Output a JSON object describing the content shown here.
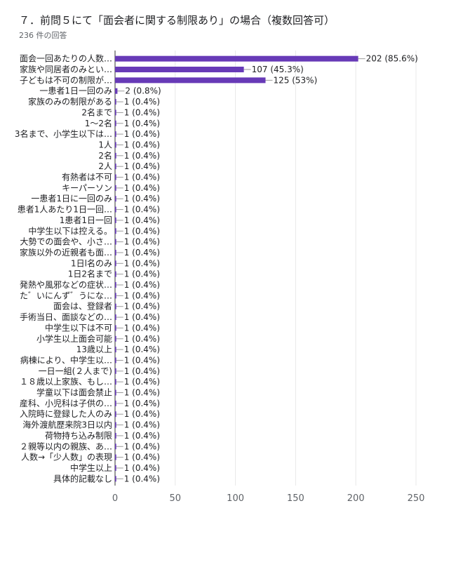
{
  "header": {
    "title": "７．前問５にて「面会者に関する制限あり」の場合（複数回答可）",
    "response_count": "236 件の回答"
  },
  "colors": {
    "bar": "#673ab7",
    "grid": "#e8e8e8",
    "axis": "#333333"
  },
  "chart_data": {
    "type": "bar",
    "orientation": "horizontal",
    "title": "７．前問５にて「面会者に関する制限あり」の場合（複数回答可）",
    "subtitle": "236 件の回答",
    "categories": [
      "面会一回あたりの人数…",
      "家族や同居者のみとい…",
      "子どもは不可の制限が…",
      "一患者1日一回のみ",
      "家族のみの制限がある",
      "2名まで",
      "1～2名",
      "3名まで、小学生以下は…",
      "1人",
      "2名",
      "2人",
      "有熱者は不可",
      "キーパーソン",
      "一患者1日に一回のみ",
      "患者1人あたり1日一回…",
      "1患者1日一回",
      "中学生以下は控える。",
      "大勢での面会や、小さ…",
      "家族以外の近親者も面…",
      "1日l名のみ",
      "1日2名まで",
      "発熱や風邪などの症状…",
      "た゛いにんず゛うにな…",
      "面会は、登録者",
      "手術当日、面談などの…",
      "中学生以下は不可",
      "小学生以上面会可能",
      "13歳以上",
      "病棟により、中学生以…",
      "一日一組(２人まで)",
      "１８歳以上家族、もし…",
      "学童以下は面会禁止",
      "産科、小児科は子供の…",
      "入院時に登録した人のみ",
      "海外渡航歴来院3日以内",
      "荷物持ち込み制限",
      "２親等以内の親族、あ…",
      "人数→「少人数」の表現",
      "中学生以上",
      "具体的記載なし"
    ],
    "values": [
      202,
      107,
      125,
      2,
      1,
      1,
      1,
      1,
      1,
      1,
      1,
      1,
      1,
      1,
      1,
      1,
      1,
      1,
      1,
      1,
      1,
      1,
      1,
      1,
      1,
      1,
      1,
      1,
      1,
      1,
      1,
      1,
      1,
      1,
      1,
      1,
      1,
      1,
      1,
      1
    ],
    "value_labels": [
      "202 (85.6%)",
      "107 (45.3%)",
      "125 (53%)",
      "2 (0.8%)",
      "1 (0.4%)",
      "1 (0.4%)",
      "1 (0.4%)",
      "1 (0.4%)",
      "1 (0.4%)",
      "1 (0.4%)",
      "1 (0.4%)",
      "1 (0.4%)",
      "1 (0.4%)",
      "1 (0.4%)",
      "1 (0.4%)",
      "1 (0.4%)",
      "1 (0.4%)",
      "1 (0.4%)",
      "1 (0.4%)",
      "1 (0.4%)",
      "1 (0.4%)",
      "1 (0.4%)",
      "1 (0.4%)",
      "1 (0.4%)",
      "1 (0.4%)",
      "1 (0.4%)",
      "1 (0.4%)",
      "1 (0.4%)",
      "1 (0.4%)",
      "1 (0.4%)",
      "1 (0.4%)",
      "1 (0.4%)",
      "1 (0.4%)",
      "1 (0.4%)",
      "1 (0.4%)",
      "1 (0.4%)",
      "1 (0.4%)",
      "1 (0.4%)",
      "1 (0.4%)",
      "1 (0.4%)"
    ],
    "xlim": [
      0,
      250
    ],
    "xticks": [
      0,
      50,
      100,
      150,
      200,
      250
    ],
    "grid": true,
    "legend": "none"
  }
}
